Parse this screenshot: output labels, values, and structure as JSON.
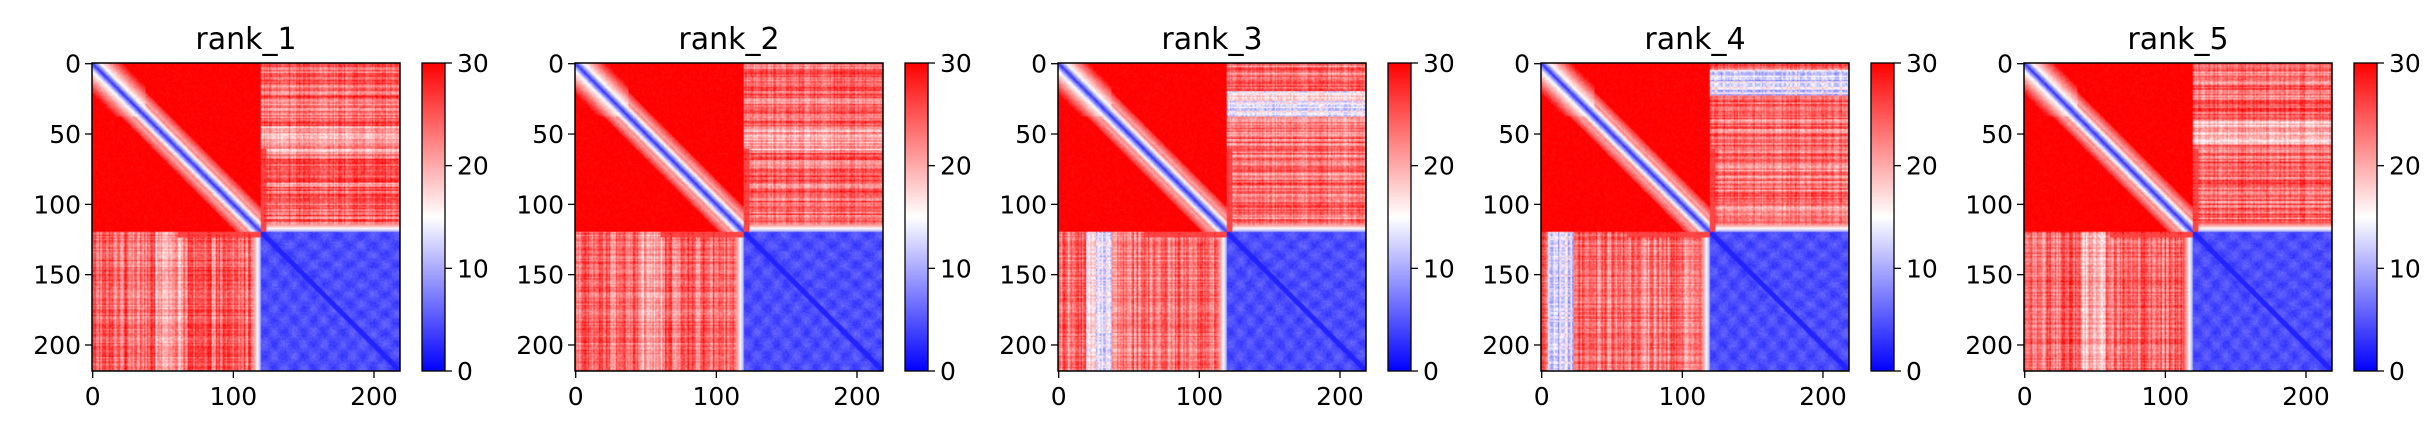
{
  "chart_data": [
    {
      "type": "heatmap",
      "title": "rank_1",
      "xlabel": "",
      "ylabel": "",
      "x_ticks": [
        "0",
        "100",
        "200"
      ],
      "y_ticks": [
        "0",
        "50",
        "100",
        "150",
        "200"
      ],
      "colorbar": {
        "ticks": [
          "0",
          "10",
          "20",
          "30"
        ],
        "range": [
          0,
          30
        ],
        "colors": [
          "#0000ff",
          "#ffffff",
          "#ff0000"
        ]
      },
      "matrix": {
        "size": 219,
        "boundary": 120,
        "lower_left_level": 24,
        "left_blue_band": 4,
        "band_min": 45
      }
    },
    {
      "type": "heatmap",
      "title": "rank_2",
      "xlabel": "",
      "ylabel": "",
      "x_ticks": [
        "0",
        "100",
        "200"
      ],
      "y_ticks": [
        "0",
        "50",
        "100",
        "150",
        "200"
      ],
      "colorbar": {
        "ticks": [
          "0",
          "10",
          "20",
          "30"
        ],
        "range": [
          0,
          30
        ],
        "colors": [
          "#0000ff",
          "#ffffff",
          "#ff0000"
        ]
      },
      "matrix": {
        "size": 219,
        "boundary": 120,
        "lower_left_level": 24,
        "left_blue_band": 4,
        "band_min": 45
      }
    },
    {
      "type": "heatmap",
      "title": "rank_3",
      "xlabel": "",
      "ylabel": "",
      "x_ticks": [
        "0",
        "100",
        "200"
      ],
      "y_ticks": [
        "0",
        "50",
        "100",
        "150",
        "200"
      ],
      "colorbar": {
        "ticks": [
          "0",
          "10",
          "20",
          "30"
        ],
        "range": [
          0,
          30
        ],
        "colors": [
          "#0000ff",
          "#ffffff",
          "#ff0000"
        ]
      },
      "matrix": {
        "size": 219,
        "boundary": 120,
        "lower_left_level": 23,
        "left_blue_band": 8,
        "band_min": 20
      }
    },
    {
      "type": "heatmap",
      "title": "rank_4",
      "xlabel": "",
      "ylabel": "",
      "x_ticks": [
        "0",
        "100",
        "200"
      ],
      "y_ticks": [
        "0",
        "50",
        "100",
        "150",
        "200"
      ],
      "colorbar": {
        "ticks": [
          "0",
          "10",
          "20",
          "30"
        ],
        "range": [
          0,
          30
        ],
        "colors": [
          "#0000ff",
          "#ffffff",
          "#ff0000"
        ]
      },
      "matrix": {
        "size": 219,
        "boundary": 120,
        "lower_left_level": 23,
        "left_blue_band": 10,
        "band_min": 5
      }
    },
    {
      "type": "heatmap",
      "title": "rank_5",
      "xlabel": "",
      "ylabel": "",
      "x_ticks": [
        "0",
        "100",
        "200"
      ],
      "y_ticks": [
        "0",
        "50",
        "100",
        "150",
        "200"
      ],
      "colorbar": {
        "ticks": [
          "0",
          "10",
          "20",
          "30"
        ],
        "range": [
          0,
          30
        ],
        "colors": [
          "#0000ff",
          "#ffffff",
          "#ff0000"
        ]
      },
      "matrix": {
        "size": 219,
        "boundary": 120,
        "lower_left_level": 24,
        "left_blue_band": 5,
        "band_min": 40
      }
    }
  ]
}
